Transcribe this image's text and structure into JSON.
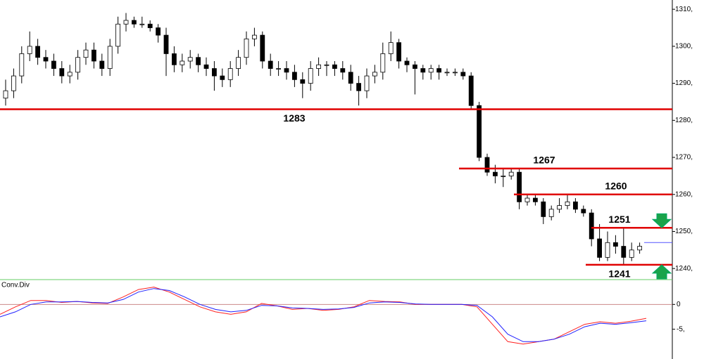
{
  "chart_data": [
    {
      "type": "candlestick",
      "open": [
        1286,
        1288,
        1292,
        1298,
        1300,
        1297,
        1296,
        1294,
        1292,
        1293,
        1297,
        1299,
        1296,
        1294,
        1300,
        1306,
        1307,
        1306,
        1306,
        1305,
        1303,
        1298,
        1295,
        1296,
        1297,
        1295,
        1294,
        1292,
        1291,
        1294,
        1297,
        1302,
        1303,
        1296,
        1294,
        1294,
        1293,
        1291,
        1290,
        1294,
        1295,
        1295,
        1294,
        1293,
        1290,
        1288,
        1292,
        1293,
        1298,
        1301,
        1296,
        1295,
        1294,
        1293,
        1294,
        1293,
        1293,
        1293,
        1292,
        1284,
        1270,
        1266,
        1265,
        1265,
        1266,
        1258,
        1259,
        1258,
        1254,
        1256,
        1257,
        1258,
        1256,
        1255,
        1248,
        1243,
        1247,
        1246,
        1243,
        1245
      ],
      "high": [
        1291,
        1294,
        1300,
        1304,
        1302,
        1299,
        1298,
        1296,
        1295,
        1299,
        1301,
        1301,
        1298,
        1302,
        1308,
        1309,
        1308,
        1308,
        1307,
        1306,
        1305,
        1300,
        1298,
        1299,
        1298,
        1297,
        1296,
        1294,
        1296,
        1299,
        1304,
        1305,
        1304,
        1298,
        1296,
        1296,
        1295,
        1293,
        1296,
        1297,
        1296,
        1296,
        1296,
        1295,
        1292,
        1294,
        1295,
        1301,
        1304,
        1302,
        1297,
        1296,
        1295,
        1295,
        1295,
        1294,
        1294,
        1294,
        1293,
        1285,
        1271,
        1268,
        1267,
        1267,
        1267,
        1260,
        1260,
        1259,
        1257,
        1259,
        1260,
        1259,
        1257,
        1256,
        1252,
        1250,
        1249,
        1251,
        1247,
        1247
      ],
      "low": [
        1284,
        1286,
        1290,
        1296,
        1295,
        1294,
        1292,
        1290,
        1290,
        1291,
        1295,
        1294,
        1292,
        1292,
        1298,
        1304,
        1305,
        1305,
        1304,
        1301,
        1292,
        1293,
        1293,
        1294,
        1293,
        1292,
        1288,
        1289,
        1289,
        1292,
        1295,
        1300,
        1294,
        1292,
        1292,
        1291,
        1289,
        1286,
        1288,
        1292,
        1292,
        1292,
        1291,
        1288,
        1284,
        1286,
        1290,
        1291,
        1296,
        1294,
        1293,
        1287,
        1291,
        1291,
        1291,
        1292,
        1292,
        1291,
        1283,
        1269,
        1265,
        1263,
        1262,
        1264,
        1256,
        1257,
        1257,
        1252,
        1253,
        1255,
        1256,
        1255,
        1254,
        1246,
        1242,
        1242,
        1244,
        1241,
        1242,
        1244
      ],
      "close": [
        1288,
        1292,
        1298,
        1300,
        1297,
        1296,
        1294,
        1292,
        1293,
        1297,
        1299,
        1296,
        1294,
        1300,
        1306,
        1307,
        1306,
        1306,
        1305,
        1303,
        1298,
        1295,
        1296,
        1297,
        1295,
        1294,
        1292,
        1291,
        1294,
        1297,
        1302,
        1303,
        1296,
        1294,
        1294,
        1293,
        1291,
        1290,
        1294,
        1295,
        1295,
        1294,
        1293,
        1290,
        1288,
        1292,
        1293,
        1298,
        1301,
        1296,
        1295,
        1294,
        1293,
        1294,
        1293,
        1293,
        1293,
        1292,
        1284,
        1270,
        1266,
        1265,
        1265,
        1266,
        1258,
        1259,
        1258,
        1254,
        1256,
        1257,
        1258,
        1256,
        1255,
        1248,
        1243,
        1247,
        1246,
        1243,
        1245,
        1246
      ],
      "ylim": [
        1237,
        1312.5
      ],
      "yticks": [
        {
          "value": 1240,
          "label": "1240,"
        },
        {
          "value": 1250,
          "label": "1250,"
        },
        {
          "value": 1260,
          "label": "1260,"
        },
        {
          "value": 1270,
          "label": "1270,"
        },
        {
          "value": 1280,
          "label": "1280,"
        },
        {
          "value": 1290,
          "label": "1290,"
        },
        {
          "value": 1300,
          "label": "1300,"
        },
        {
          "value": 1310,
          "label": "1310,"
        }
      ],
      "levels": [
        1283,
        1267,
        1260,
        1251,
        1241
      ],
      "level_color": "#e00000",
      "current_price": 1247
    },
    {
      "type": "line",
      "title": "Conv.Div",
      "series": [
        {
          "name": "red",
          "color": "#ff2020",
          "values": [
            -2,
            -0.5,
            0.8,
            0.8,
            0.4,
            0.6,
            0.3,
            0.2,
            1.5,
            3,
            3.5,
            2.5,
            1,
            -0.5,
            -1.5,
            -2,
            -1.5,
            0.2,
            -0.3,
            -1,
            -0.8,
            -1.2,
            -1,
            -0.5,
            0.8,
            0.6,
            0.5,
            0,
            0,
            0,
            0,
            -0.5,
            -4,
            -7.5,
            -8,
            -7.5,
            -7,
            -5.5,
            -4,
            -3.5,
            -3.8,
            -3.4,
            -2.8
          ]
        },
        {
          "name": "blue",
          "color": "#2020ff",
          "values": [
            -2.5,
            -1.5,
            0,
            0.5,
            0.5,
            0.6,
            0.4,
            0.3,
            1,
            2.5,
            3.2,
            2.8,
            1.5,
            0,
            -1,
            -1.5,
            -1.2,
            -0.2,
            -0.3,
            -0.7,
            -0.8,
            -1,
            -0.9,
            -0.6,
            0.3,
            0.5,
            0.4,
            0.1,
            0,
            0,
            0,
            -0.2,
            -2.5,
            -6,
            -7.5,
            -7.5,
            -7,
            -6,
            -4.5,
            -3.8,
            -4,
            -3.7,
            -3.3
          ]
        }
      ],
      "ylim": [
        -11,
        5
      ],
      "yticks": [
        0,
        {
          "value": -5,
          "label": "-5,"
        }
      ]
    }
  ]
}
